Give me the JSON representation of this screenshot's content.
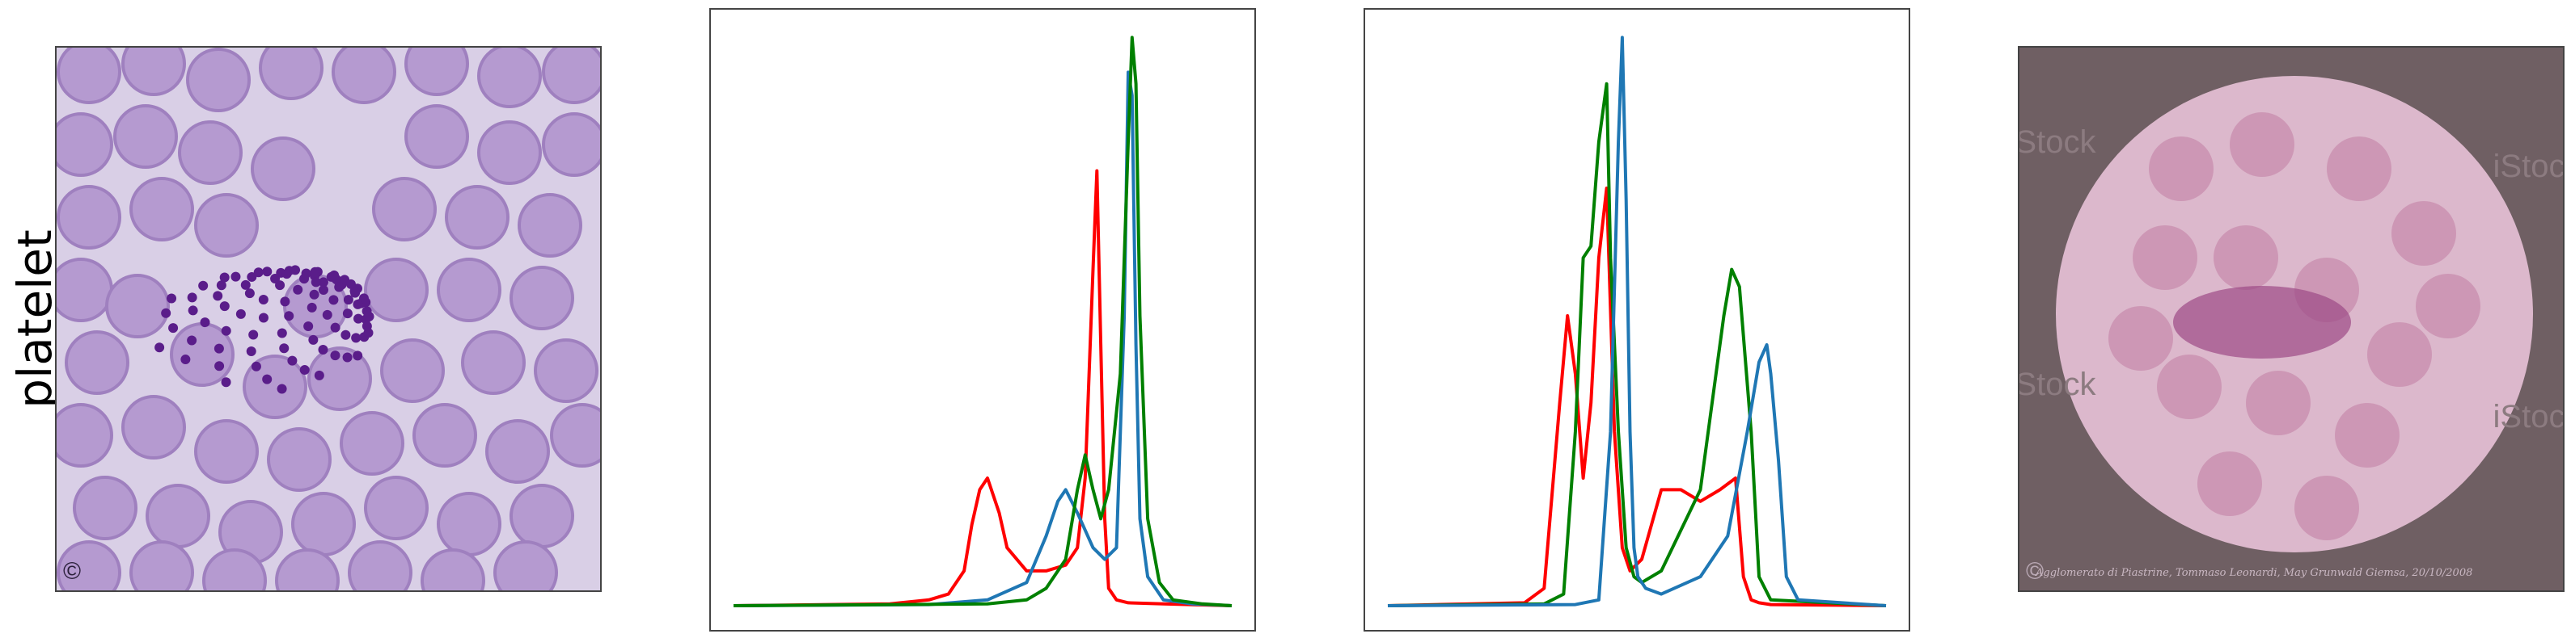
{
  "row_label": "platelet",
  "left_image": {
    "description": "platelet-smear",
    "copyright": "©"
  },
  "right_image": {
    "copyright": "©",
    "watermark": "iStock",
    "caption": "Agglomerato di Piastrine, Tommaso Leonardi, May Grunwald Giemsa, 20/10/2008"
  },
  "colors": {
    "red": "#ff0000",
    "green": "#008000",
    "blue": "#1f77b4",
    "frame": "#444444"
  },
  "chart_data": [
    {
      "type": "line",
      "xlim": [
        0,
        255
      ],
      "ylim": [
        0,
        1
      ],
      "series": [
        {
          "color": "red",
          "x": [
            0,
            80,
            100,
            110,
            118,
            122,
            126,
            130,
            136,
            140,
            150,
            160,
            170,
            176,
            180,
            184,
            186,
            188,
            190,
            192,
            196,
            202,
            220,
            255
          ],
          "y": [
            0,
            0.003,
            0.01,
            0.02,
            0.06,
            0.14,
            0.2,
            0.22,
            0.16,
            0.1,
            0.06,
            0.06,
            0.07,
            0.1,
            0.22,
            0.58,
            0.75,
            0.45,
            0.15,
            0.03,
            0.01,
            0.005,
            0.003,
            0
          ]
        },
        {
          "color": "blue",
          "x": [
            0,
            100,
            130,
            150,
            160,
            166,
            170,
            176,
            184,
            190,
            196,
            200,
            202,
            204,
            206,
            208,
            212,
            220,
            235,
            255
          ],
          "y": [
            0,
            0.002,
            0.01,
            0.04,
            0.12,
            0.18,
            0.2,
            0.16,
            0.1,
            0.08,
            0.1,
            0.5,
            0.92,
            0.88,
            0.45,
            0.15,
            0.05,
            0.01,
            0.003,
            0
          ]
        },
        {
          "color": "green",
          "x": [
            0,
            130,
            150,
            160,
            170,
            176,
            180,
            184,
            188,
            192,
            198,
            202,
            204,
            206,
            208,
            212,
            218,
            225,
            240,
            255
          ],
          "y": [
            0,
            0.003,
            0.01,
            0.03,
            0.08,
            0.2,
            0.26,
            0.2,
            0.15,
            0.2,
            0.4,
            0.8,
            0.98,
            0.9,
            0.5,
            0.15,
            0.04,
            0.01,
            0.003,
            0
          ]
        }
      ]
    },
    {
      "type": "line",
      "xlim": [
        0,
        255
      ],
      "ylim": [
        0,
        1
      ],
      "series": [
        {
          "color": "red",
          "x": [
            0,
            70,
            80,
            88,
            92,
            96,
            100,
            104,
            108,
            112,
            116,
            120,
            124,
            130,
            140,
            150,
            160,
            170,
            178,
            182,
            186,
            190,
            196,
            255
          ],
          "y": [
            0,
            0.005,
            0.03,
            0.35,
            0.5,
            0.4,
            0.22,
            0.35,
            0.6,
            0.72,
            0.3,
            0.1,
            0.06,
            0.08,
            0.2,
            0.2,
            0.18,
            0.2,
            0.22,
            0.05,
            0.01,
            0.005,
            0.002,
            0
          ]
        },
        {
          "color": "green",
          "x": [
            0,
            80,
            90,
            96,
            100,
            104,
            108,
            112,
            114,
            118,
            122,
            126,
            130,
            140,
            160,
            172,
            176,
            180,
            186,
            190,
            196,
            255
          ],
          "y": [
            0,
            0.003,
            0.02,
            0.3,
            0.6,
            0.62,
            0.8,
            0.9,
            0.6,
            0.3,
            0.1,
            0.05,
            0.04,
            0.06,
            0.2,
            0.5,
            0.58,
            0.55,
            0.3,
            0.05,
            0.01,
            0
          ]
        },
        {
          "color": "blue",
          "x": [
            0,
            96,
            108,
            114,
            118,
            120,
            122,
            124,
            126,
            128,
            132,
            140,
            160,
            174,
            184,
            190,
            194,
            196,
            200,
            204,
            210,
            255
          ],
          "y": [
            0,
            0.002,
            0.01,
            0.3,
            0.8,
            0.98,
            0.7,
            0.3,
            0.1,
            0.05,
            0.03,
            0.02,
            0.05,
            0.12,
            0.3,
            0.42,
            0.45,
            0.4,
            0.25,
            0.05,
            0.01,
            0
          ]
        }
      ]
    }
  ]
}
